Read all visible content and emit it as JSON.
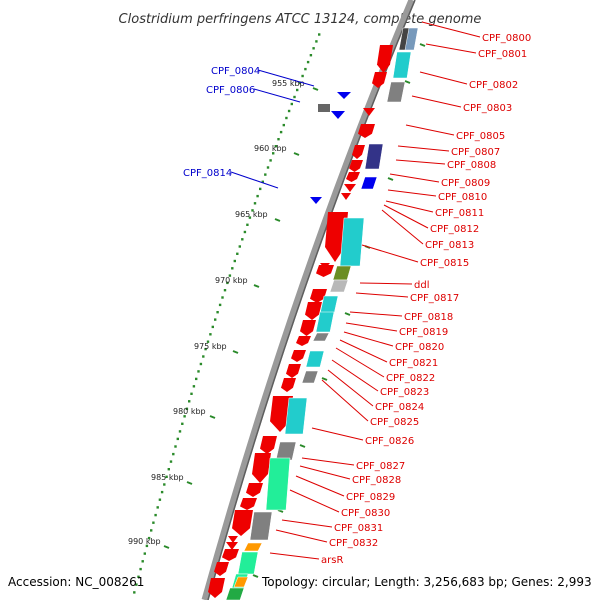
{
  "header": {
    "title": "Clostridium perfringens ATCC 13124, complete genome"
  },
  "footer": {
    "accession": "Accession: NC_008261",
    "topology": "Topology: circular; Length: 3,256,683 bp; Genes: 2,993"
  },
  "colors": {
    "forward_label": "#dd0000",
    "reverse_label": "#0000cc",
    "backbone": "#9a9a9a",
    "tick": "#2a8a2a",
    "gene_red": "#ee0000",
    "gene_cyan": "#22cccc",
    "gene_gray": "#808080",
    "gene_blue": "#0000ee",
    "gene_navy": "#333388",
    "gene_olive": "#6b8e23",
    "gene_green": "#22ee99",
    "gene_orange": "#ff9900"
  },
  "scale": {
    "unit": "kbp",
    "ticks": [
      "955 kbp",
      "960 kbp",
      "965 kbp",
      "970 kbp",
      "975 kbp",
      "980 kbp",
      "985 kbp",
      "990 kbp"
    ]
  },
  "genes_forward": [
    "CPF_0800",
    "CPF_0801",
    "CPF_0802",
    "CPF_0803",
    "CPF_0805",
    "CPF_0807",
    "CPF_0808",
    "CPF_0809",
    "CPF_0810",
    "CPF_0811",
    "CPF_0812",
    "CPF_0813",
    "CPF_0815",
    "ddl",
    "CPF_0817",
    "CPF_0818",
    "CPF_0819",
    "CPF_0820",
    "CPF_0821",
    "CPF_0822",
    "CPF_0823",
    "CPF_0824",
    "CPF_0825",
    "CPF_0826",
    "CPF_0827",
    "CPF_0828",
    "CPF_0829",
    "CPF_0830",
    "CPF_0831",
    "CPF_0832",
    "arsR"
  ],
  "genes_reverse": [
    "CPF_0804",
    "CPF_0806",
    "CPF_0814"
  ]
}
